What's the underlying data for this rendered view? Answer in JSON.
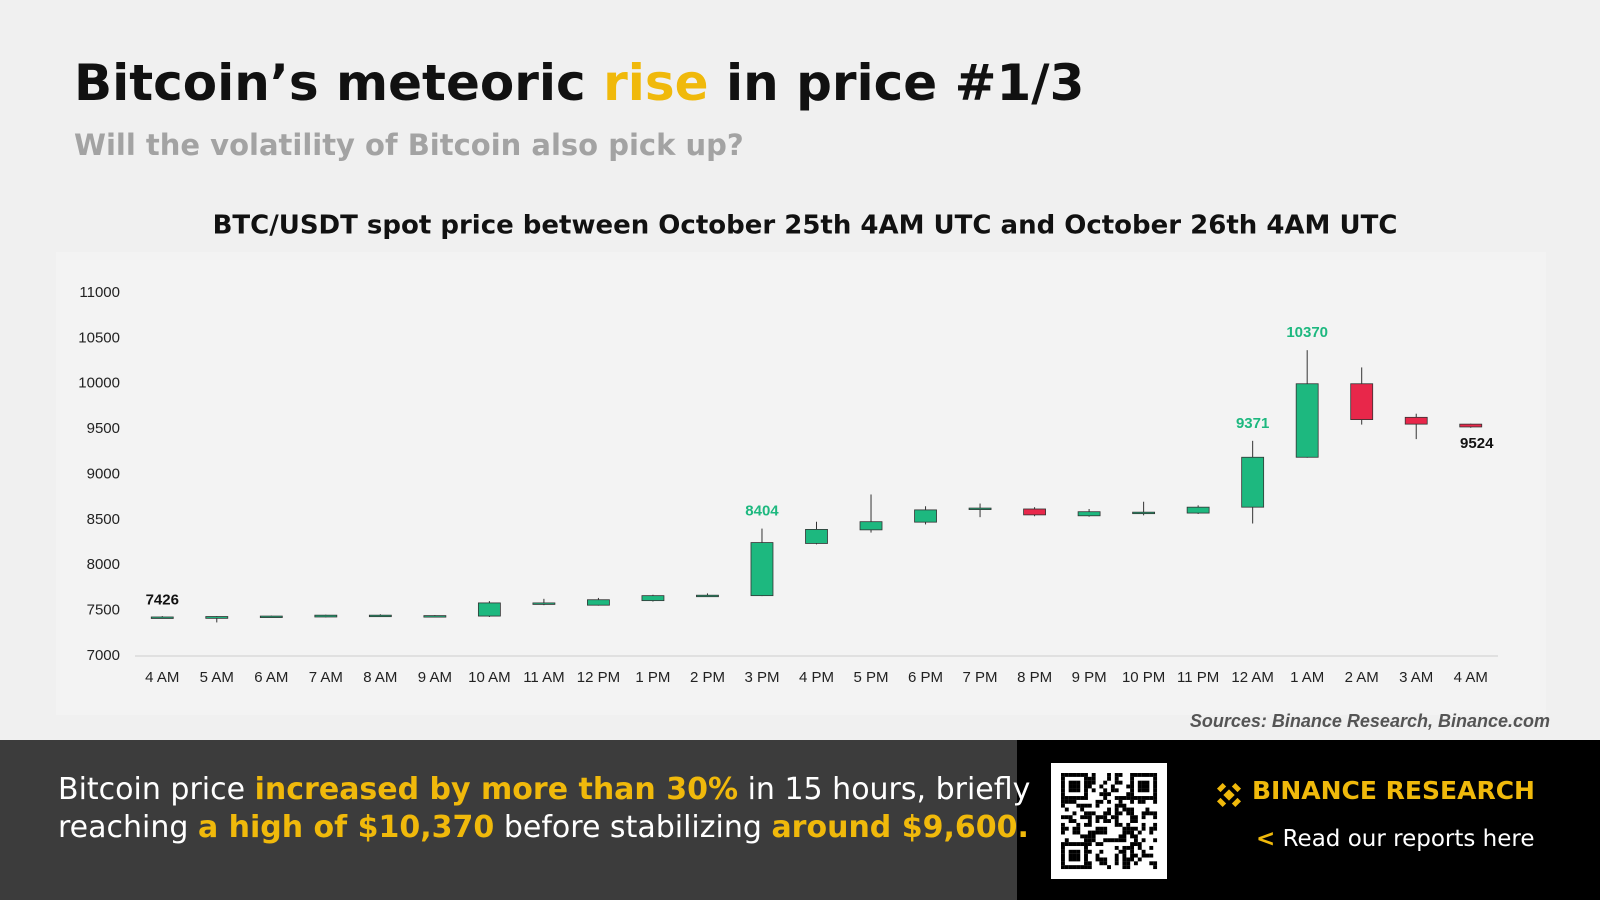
{
  "header": {
    "title": [
      {
        "text": "Bitcoin’s meteoric ",
        "highlight": false
      },
      {
        "text": "rise",
        "highlight": true
      },
      {
        "text": " in price #1/3",
        "highlight": false
      }
    ],
    "subtitle": "Will the volatility of Bitcoin also pick up?"
  },
  "chart_data": {
    "type": "candlestick",
    "title": "BTC/USDT spot price between October 25th 4AM UTC and October 26th 4AM UTC",
    "categories": [
      "4 AM",
      "5 AM",
      "6 AM",
      "7 AM",
      "8 AM",
      "9 AM",
      "10 AM",
      "11 AM",
      "12 PM",
      "1 PM",
      "2 PM",
      "3 PM",
      "4 PM",
      "5 PM",
      "6 PM",
      "7 PM",
      "8 PM",
      "9 PM",
      "10 PM",
      "11 PM",
      "12 AM",
      "1 AM",
      "2 AM",
      "3 AM",
      "4 AM"
    ],
    "open": [
      7426,
      7415,
      7435,
      7430,
      7445,
      7435,
      7440,
      7570,
      7560,
      7610,
      7660,
      7665,
      8240,
      8390,
      8475,
      8620,
      8620,
      8545,
      8570,
      8575,
      8640,
      9190,
      10000,
      9630,
      9555
    ],
    "high": [
      7440,
      7440,
      7445,
      7455,
      7460,
      7450,
      7605,
      7630,
      7640,
      7675,
      7690,
      8404,
      8480,
      8780,
      8650,
      8680,
      8640,
      8620,
      8700,
      8660,
      9371,
      10370,
      10180,
      9670,
      9560
    ],
    "low": [
      7420,
      7370,
      7430,
      7425,
      7440,
      7430,
      7430,
      7560,
      7555,
      7600,
      7650,
      7660,
      8230,
      8360,
      8450,
      8530,
      8540,
      8535,
      8550,
      8565,
      8460,
      9185,
      9550,
      9390,
      9515
    ],
    "close": [
      7430,
      7435,
      7440,
      7450,
      7450,
      7445,
      7585,
      7585,
      7620,
      7665,
      7670,
      8250,
      8395,
      8480,
      8610,
      8630,
      8555,
      8590,
      8585,
      8640,
      9190,
      10000,
      9605,
      9555,
      9524
    ],
    "up_color": "#1db87f",
    "down_color": "#e8274a",
    "ylim": [
      7000,
      11000
    ],
    "yticks": [
      7000,
      7500,
      8000,
      8500,
      9000,
      9500,
      10000,
      10500,
      11000
    ],
    "source": "Sources: Binance Research, Binance.com"
  },
  "footer": {
    "lines": [
      [
        {
          "text": "Bitcoin price ",
          "highlight": false
        },
        {
          "text": "increased by more than 30%",
          "highlight": true
        },
        {
          "text": " in 15 hours, briefly",
          "highlight": false
        }
      ],
      [
        {
          "text": "reaching ",
          "highlight": false
        },
        {
          "text": "a high of $10,370",
          "highlight": true
        },
        {
          "text": " before stabilizing ",
          "highlight": false
        },
        {
          "text": "around $9,600.",
          "highlight": true
        }
      ]
    ],
    "brand": "BINANCE RESEARCH",
    "cta": "Read our reports here"
  }
}
